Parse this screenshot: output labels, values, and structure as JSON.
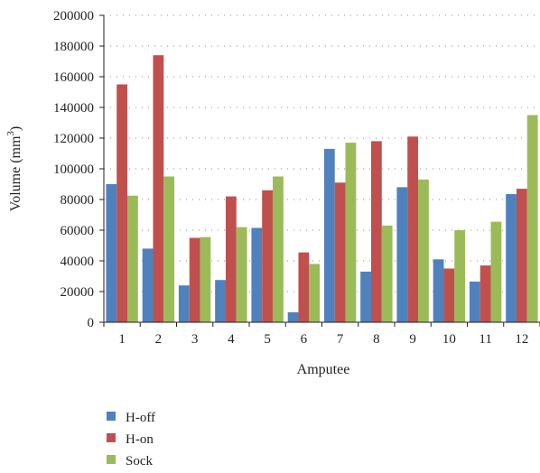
{
  "chart_data": {
    "type": "bar",
    "categories": [
      "1",
      "2",
      "3",
      "4",
      "5",
      "6",
      "7",
      "8",
      "9",
      "10",
      "11",
      "12"
    ],
    "series": [
      {
        "name": "H-off",
        "color": "#4f81bd",
        "values": [
          90000,
          48000,
          24000,
          27500,
          61500,
          6500,
          113000,
          33000,
          88000,
          41000,
          26500,
          83500
        ]
      },
      {
        "name": "H-on",
        "color": "#c0504d",
        "values": [
          155000,
          174000,
          55000,
          82000,
          86000,
          45500,
          91000,
          118000,
          121000,
          35000,
          37000,
          87000
        ]
      },
      {
        "name": "Sock",
        "color": "#9bbb59",
        "values": [
          82500,
          95000,
          55500,
          62000,
          95000,
          38000,
          117000,
          63000,
          93000,
          60000,
          65500,
          135000
        ]
      }
    ],
    "xlabel": "Amputee",
    "ylabel": "Volume (mm",
    "ylabel_sup": "3",
    "ylabel_end": ")",
    "ylim": [
      0,
      200000
    ],
    "yticks": [
      "0",
      "20000",
      "40000",
      "60000",
      "80000",
      "100000",
      "120000",
      "140000",
      "160000",
      "180000",
      "200000"
    ],
    "grid": true,
    "legend_position": "bottom-left"
  }
}
